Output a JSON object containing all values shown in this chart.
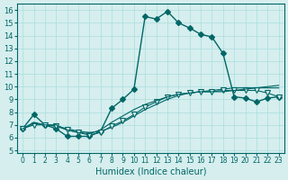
{
  "title": "",
  "xlabel": "Humidex (Indice chaleur)",
  "ylabel": "",
  "bg_color": "#d6eeee",
  "line_color": "#006666",
  "xlim": [
    -0.5,
    23.5
  ],
  "ylim": [
    5,
    16.5
  ],
  "xticks": [
    0,
    1,
    2,
    3,
    4,
    5,
    6,
    7,
    8,
    9,
    10,
    11,
    12,
    13,
    14,
    15,
    16,
    17,
    18,
    19,
    20,
    21,
    22,
    23
  ],
  "yticks": [
    5,
    6,
    7,
    8,
    9,
    10,
    11,
    12,
    13,
    14,
    15,
    16
  ],
  "line1": {
    "x": [
      0,
      1,
      2,
      3,
      4,
      5,
      6,
      7,
      8,
      9,
      10,
      11,
      12,
      13,
      14,
      15,
      16,
      17,
      18,
      19,
      20,
      21,
      22,
      23
    ],
    "y": [
      6.7,
      7.8,
      7.0,
      6.7,
      6.1,
      6.1,
      6.1,
      6.5,
      8.3,
      9.0,
      9.8,
      15.5,
      15.3,
      15.9,
      15.0,
      14.6,
      14.1,
      13.9,
      12.6,
      9.2,
      9.1,
      8.8,
      9.1,
      9.2
    ],
    "marker": "D",
    "markersize": 3
  },
  "line2": {
    "x": [
      0,
      1,
      2,
      3,
      4,
      5,
      6,
      7,
      8,
      9,
      10,
      11,
      12,
      13,
      14,
      15,
      16,
      17,
      18,
      19,
      20,
      21,
      22,
      23
    ],
    "y": [
      6.7,
      7.2,
      7.0,
      6.9,
      6.7,
      6.5,
      6.4,
      6.5,
      6.8,
      7.2,
      7.7,
      8.2,
      8.6,
      9.0,
      9.3,
      9.5,
      9.6,
      9.7,
      9.8,
      9.9,
      9.9,
      9.9,
      9.9,
      9.9
    ],
    "marker": null,
    "markersize": 0
  },
  "line3": {
    "x": [
      0,
      1,
      2,
      3,
      4,
      5,
      6,
      7,
      8,
      9,
      10,
      11,
      12,
      13,
      14,
      15,
      16,
      17,
      18,
      19,
      20,
      21,
      22,
      23
    ],
    "y": [
      6.7,
      7.0,
      7.0,
      6.9,
      6.6,
      6.4,
      6.2,
      6.4,
      6.9,
      7.3,
      7.8,
      8.4,
      8.8,
      9.2,
      9.4,
      9.5,
      9.6,
      9.6,
      9.7,
      9.7,
      9.7,
      9.7,
      9.5,
      9.2
    ],
    "marker": "v",
    "markersize": 4
  },
  "line4": {
    "x": [
      0,
      1,
      2,
      3,
      4,
      5,
      6,
      7,
      8,
      9,
      10,
      11,
      12,
      13,
      14,
      15,
      16,
      17,
      18,
      19,
      20,
      21,
      22,
      23
    ],
    "y": [
      6.7,
      7.1,
      7.0,
      7.0,
      6.6,
      6.4,
      6.3,
      6.6,
      7.2,
      7.7,
      8.2,
      8.6,
      8.9,
      9.2,
      9.4,
      9.5,
      9.6,
      9.6,
      9.6,
      9.7,
      9.8,
      9.9,
      10.0,
      10.1
    ],
    "marker": null,
    "markersize": 0
  }
}
